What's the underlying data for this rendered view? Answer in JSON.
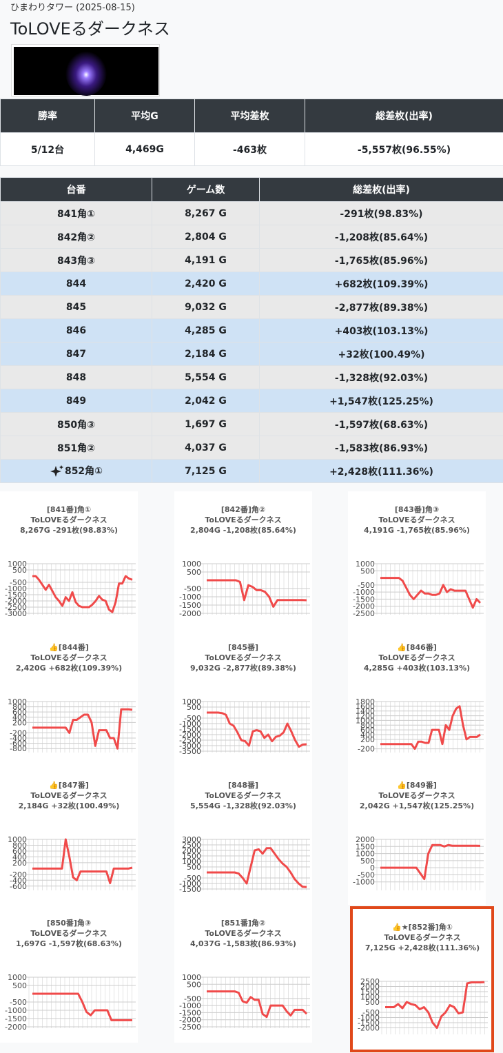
{
  "header": {
    "subtitle": "ひまわりタワー (2025-08-15)",
    "title": "ToLOVEるダークネス"
  },
  "summary": {
    "headers": [
      "勝率",
      "平均G",
      "平均差枚",
      "総差枚(出率)"
    ],
    "row": [
      "5/12台",
      "4,469G",
      "-463枚",
      "-5,557枚(96.55%)"
    ]
  },
  "table": {
    "headers": [
      "台番",
      "ゲーム数",
      "総差枚(出率)"
    ],
    "rows": [
      {
        "cells": [
          "841角①",
          "8,267 G",
          "-291枚(98.83%)"
        ],
        "color": "#e9e9e9"
      },
      {
        "cells": [
          "842角②",
          "2,804 G",
          "-1,208枚(85.64%)"
        ],
        "color": "#e9e9e9"
      },
      {
        "cells": [
          "843角③",
          "4,191 G",
          "-1,765枚(85.96%)"
        ],
        "color": "#e9e9e9"
      },
      {
        "cells": [
          "844",
          "2,420 G",
          "+682枚(109.39%)"
        ],
        "color": "#cfe2f5"
      },
      {
        "cells": [
          "845",
          "9,032 G",
          "-2,877枚(89.38%)"
        ],
        "color": "#e9e9e9"
      },
      {
        "cells": [
          "846",
          "4,285 G",
          "+403枚(103.13%)"
        ],
        "color": "#cfe2f5"
      },
      {
        "cells": [
          "847",
          "2,184 G",
          "+32枚(100.49%)"
        ],
        "color": "#cfe2f5"
      },
      {
        "cells": [
          "848",
          "5,554 G",
          "-1,328枚(92.03%)"
        ],
        "color": "#e9e9e9"
      },
      {
        "cells": [
          "849",
          "2,042 G",
          "+1,547枚(125.25%)"
        ],
        "color": "#cfe2f5"
      },
      {
        "cells": [
          "850角③",
          "1,697 G",
          "-1,597枚(68.63%)"
        ],
        "color": "#e9e9e9"
      },
      {
        "cells": [
          "851角②",
          "4,037 G",
          "-1,583枚(86.93%)"
        ],
        "color": "#e9e9e9"
      },
      {
        "cells": [
          "852角①",
          "7,125 G",
          "+2,428枚(111.36%)"
        ],
        "color": "#cfe2f5",
        "featured": true
      }
    ]
  },
  "chart_data": [
    {
      "type": "line",
      "title": [
        "[841番]角①",
        "ToLOVEるダークネス",
        "8,267G -291枚(98.83%)"
      ],
      "ylim": [
        -3000,
        1000
      ],
      "yticks": [
        1000,
        500,
        -500,
        -1000,
        -1500,
        -2000,
        -2500,
        -3000
      ],
      "series": [
        {
          "color": "#f04a4a",
          "values": [
            0,
            0,
            -300,
            -700,
            -1100,
            -700,
            -1200,
            -1700,
            -2000,
            -2400,
            -1700,
            -2000,
            -1300,
            -2100,
            -2400,
            -2500,
            -2500,
            -2500,
            -2300,
            -2000,
            -1600,
            -1900,
            -2000,
            -2700,
            -2900,
            -2100,
            -600,
            -600,
            0,
            -200,
            -291
          ]
        }
      ]
    },
    {
      "type": "line",
      "title": [
        "[842番]角②",
        "ToLOVEるダークネス",
        "2,804G -1,208枚(85.64%)"
      ],
      "ylim": [
        -2000,
        1000
      ],
      "yticks": [
        1000,
        500,
        -500,
        -1000,
        -1500,
        -2000
      ],
      "series": [
        {
          "color": "#f04a4a",
          "values": [
            0,
            0,
            0,
            0,
            0,
            0,
            0,
            0,
            -100,
            -1200,
            -300,
            -400,
            -600,
            -600,
            -700,
            -1000,
            -1600,
            -1200,
            -1200,
            -1200,
            -1200,
            -1200,
            -1200,
            -1200,
            -1208
          ]
        }
      ]
    },
    {
      "type": "line",
      "title": [
        "[843番]角③",
        "ToLOVEるダークネス",
        "4,191G -1,765枚(85.96%)"
      ],
      "ylim": [
        -2500,
        1000
      ],
      "yticks": [
        1000,
        500,
        -500,
        -1000,
        -1500,
        -2000,
        -2500
      ],
      "series": [
        {
          "color": "#f04a4a",
          "values": [
            0,
            0,
            0,
            0,
            0,
            0,
            -200,
            -700,
            -1200,
            -1500,
            -1200,
            -900,
            -1100,
            -1100,
            -1200,
            -1200,
            -1100,
            -500,
            -1000,
            -800,
            -900,
            -900,
            -900,
            -900,
            -1500,
            -2100,
            -1500,
            -1765
          ]
        }
      ]
    },
    {
      "type": "line",
      "title": [
        "👍[844番]",
        "ToLOVEるダークネス",
        "2,420G +682枚(109.39%)"
      ],
      "ylim": [
        -900,
        1000
      ],
      "yticks": [
        1000,
        800,
        600,
        400,
        200,
        -200,
        -400,
        -600,
        -800
      ],
      "series": [
        {
          "color": "#f04a4a",
          "values": [
            0,
            0,
            0,
            0,
            0,
            0,
            0,
            0,
            0,
            0,
            -200,
            300,
            300,
            400,
            500,
            500,
            200,
            -700,
            -100,
            -100,
            -100,
            -400,
            -400,
            -800,
            700,
            700,
            700,
            682
          ]
        }
      ]
    },
    {
      "type": "line",
      "title": [
        "[845番]",
        "ToLOVEるダークネス",
        "9,032G -2,877枚(89.38%)"
      ],
      "ylim": [
        -3500,
        1000
      ],
      "yticks": [
        1000,
        500,
        -500,
        -1000,
        -1500,
        -2000,
        -2500,
        -3000,
        -3500
      ],
      "series": [
        {
          "color": "#f04a4a",
          "values": [
            0,
            0,
            0,
            0,
            -50,
            -200,
            -1000,
            -1200,
            -1800,
            -2500,
            -2600,
            -3000,
            -1700,
            -1600,
            -1700,
            -2300,
            -2000,
            -2600,
            -2200,
            -2100,
            -1800,
            -1000,
            -1700,
            -2500,
            -3100,
            -2900,
            -2877
          ]
        }
      ]
    },
    {
      "type": "line",
      "title": [
        "👍[846番]",
        "ToLOVEるダークネス",
        "4,285G +403枚(103.13%)"
      ],
      "ylim": [
        -300,
        1800
      ],
      "yticks": [
        1800,
        1600,
        1400,
        1200,
        1000,
        800,
        600,
        400,
        200,
        -200
      ],
      "series": [
        {
          "color": "#f04a4a",
          "values": [
            0,
            0,
            0,
            0,
            0,
            0,
            0,
            0,
            0,
            0,
            -200,
            100,
            100,
            50,
            50,
            600,
            600,
            600,
            0,
            800,
            600,
            1200,
            1500,
            1600,
            800,
            200,
            300,
            300,
            300,
            403
          ]
        }
      ]
    },
    {
      "type": "line",
      "title": [
        "👍[847番]",
        "ToLOVEるダークネス",
        "2,184G +32枚(100.49%)"
      ],
      "ylim": [
        -700,
        1000
      ],
      "yticks": [
        1000,
        800,
        600,
        400,
        200,
        -200,
        -400,
        -600
      ],
      "series": [
        {
          "color": "#f04a4a",
          "values": [
            0,
            0,
            0,
            0,
            0,
            0,
            0,
            0,
            0,
            1000,
            400,
            -300,
            -400,
            -100,
            -100,
            -100,
            -100,
            -100,
            -100,
            -100,
            -100,
            -500,
            0,
            0,
            0,
            0,
            0,
            32
          ]
        }
      ]
    },
    {
      "type": "line",
      "title": [
        "[848番]",
        "ToLOVEるダークネス",
        "5,554G -1,328枚(92.03%)"
      ],
      "ylim": [
        -1500,
        3000
      ],
      "yticks": [
        3000,
        2500,
        2000,
        1500,
        1000,
        500,
        -500,
        -1000,
        -1500
      ],
      "series": [
        {
          "color": "#f04a4a",
          "values": [
            0,
            0,
            0,
            0,
            0,
            0,
            0,
            0,
            -100,
            -500,
            -1000,
            500,
            2000,
            2100,
            1700,
            2200,
            2200,
            1700,
            1200,
            800,
            500,
            0,
            -600,
            -1000,
            -1300,
            -1328
          ]
        }
      ]
    },
    {
      "type": "line",
      "title": [
        "👍[849番]",
        "ToLOVEるダークネス",
        "2,042G +1,547枚(125.25%)"
      ],
      "ylim": [
        -1500,
        2000
      ],
      "yticks": [
        2000,
        1500,
        1000,
        500,
        0,
        -500,
        -1000
      ],
      "series": [
        {
          "color": "#f04a4a",
          "values": [
            0,
            0,
            0,
            0,
            0,
            0,
            0,
            0,
            0,
            0,
            -400,
            -800,
            1000,
            1600,
            1600,
            1600,
            1500,
            1600,
            1550,
            1550,
            1550,
            1550,
            1550,
            1550,
            1550,
            1547
          ]
        }
      ]
    },
    {
      "type": "line",
      "title": [
        "[850番]角③",
        "ToLOVEるダークネス",
        "1,697G -1,597枚(68.63%)"
      ],
      "ylim": [
        -2000,
        1000
      ],
      "yticks": [
        1000,
        500,
        -500,
        -1000,
        -1500,
        -2000
      ],
      "series": [
        {
          "color": "#f04a4a",
          "values": [
            0,
            0,
            0,
            0,
            0,
            0,
            0,
            0,
            0,
            0,
            0,
            0,
            -500,
            -1100,
            -1300,
            -1000,
            -1000,
            -1000,
            -1000,
            -1600,
            -1600,
            -1600,
            -1600,
            -1600,
            -1597
          ]
        }
      ]
    },
    {
      "type": "line",
      "title": [
        "[851番]角②",
        "ToLOVEるダークネス",
        "4,037G -1,583枚(86.93%)"
      ],
      "ylim": [
        -2500,
        1000
      ],
      "yticks": [
        1000,
        500,
        -500,
        -1000,
        -1500,
        -2000,
        -2500
      ],
      "series": [
        {
          "color": "#f04a4a",
          "values": [
            0,
            0,
            0,
            0,
            0,
            0,
            0,
            0,
            -100,
            -700,
            -800,
            -400,
            -600,
            -600,
            -1600,
            -1800,
            -1000,
            -1000,
            -1000,
            -1000,
            -1400,
            -1700,
            -1300,
            -1300,
            -1300,
            -1583
          ]
        }
      ]
    },
    {
      "type": "line",
      "title": [
        "👍★[852番]角①",
        "ToLOVEるダークネス",
        "7,125G +2,428枚(111.36%)"
      ],
      "ylim": [
        -2500,
        2500
      ],
      "yticks": [
        2500,
        2000,
        1500,
        1000,
        500,
        -500,
        -1000,
        -1500,
        -2000
      ],
      "highlight": true,
      "series": [
        {
          "color": "#f04a4a",
          "values": [
            0,
            0,
            0,
            300,
            -100,
            500,
            300,
            200,
            -200,
            0,
            -500,
            -1500,
            -2000,
            -900,
            -500,
            200,
            0,
            -600,
            -500,
            2300,
            2400,
            2400,
            2400,
            2428
          ]
        }
      ]
    }
  ]
}
